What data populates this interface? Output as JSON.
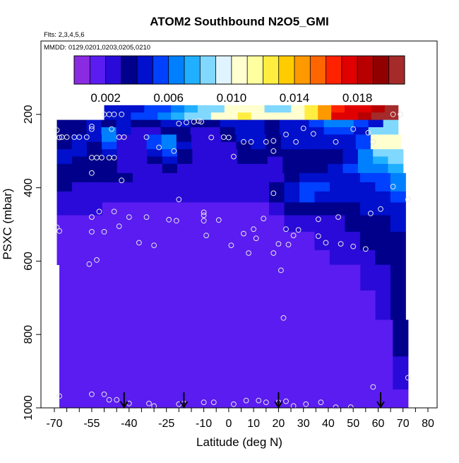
{
  "chart_data": {
    "type": "heatmap",
    "title": "ATOM2 Southbound N2O5_GMI",
    "subtitle_flights": "Flts: 2,3,4,5,6",
    "subtitle_dates": "MMDD: 0129,0201,0203,0205,0210",
    "xlabel": "Latitude (deg N)",
    "ylabel": "PSXC (mbar)",
    "xlim": [
      -70,
      85
    ],
    "ylim": [
      1000,
      0
    ],
    "x_ticks": [
      -70,
      -55,
      -40,
      -25,
      -10,
      0,
      10,
      20,
      30,
      40,
      50,
      60,
      70,
      80
    ],
    "y_ticks": [
      200,
      400,
      600,
      800,
      1000
    ],
    "colorbar": {
      "range": [
        0,
        0.021
      ],
      "tick_values": [
        0.002,
        0.006,
        0.01,
        0.014,
        0.018
      ],
      "tick_labels": [
        "0.002",
        "0.006",
        "0.010",
        "0.014",
        "0.018"
      ],
      "colors": [
        "#8a2be2",
        "#5a1cf0",
        "#2a0ad8",
        "#00008b",
        "#0010cc",
        "#0040ff",
        "#0080ff",
        "#20b0ff",
        "#80d8ff",
        "#e0f4ff",
        "#ffffd0",
        "#ffffa0",
        "#ffee40",
        "#ffcc00",
        "#ff9900",
        "#ff6600",
        "#ff2200",
        "#e00000",
        "#b80000",
        "#900000",
        "#a52a2a"
      ]
    },
    "field_rows": [
      {
        "p": [
          175,
          195
        ],
        "lat": [
          -50,
          68
        ],
        "v": [
          0.004,
          0.004,
          0.004,
          0.005,
          0.005,
          0.006,
          0.007,
          0.008,
          0.009,
          0.01,
          0.011,
          0.01,
          0.009,
          0.009,
          0.01,
          0.012,
          0.014,
          0.016,
          0.017,
          0.018,
          0.019,
          0.02
        ]
      },
      {
        "p": [
          195,
          215
        ],
        "lat": [
          -50,
          68
        ],
        "v": [
          0.004,
          0.004,
          0.005,
          0.005,
          0.006,
          0.007,
          0.008,
          0.009,
          0.01,
          0.011,
          0.012,
          0.011,
          0.01,
          0.01,
          0.011,
          0.013,
          0.015,
          0.017,
          0.018,
          0.019,
          0.02,
          0.02
        ]
      },
      {
        "p": [
          215,
          235
        ],
        "lat": [
          -69,
          68
        ],
        "v": [
          0.003,
          0.003,
          0.004,
          0.003,
          0.004,
          0.003,
          0.003,
          0.004,
          0.004,
          0.003,
          0.003,
          0.004,
          0.004,
          0.004,
          0.003,
          0.004,
          0.004,
          0.005,
          0.006,
          0.006,
          0.005,
          0.004,
          0.008
        ]
      },
      {
        "p": [
          235,
          255
        ],
        "lat": [
          -69,
          68
        ],
        "v": [
          0.003,
          0.003,
          0.004,
          0.006,
          0.004,
          0.002,
          0.002,
          0.003,
          0.003,
          0.002,
          0.002,
          0.003,
          0.004,
          0.004,
          0.003,
          0.004,
          0.004,
          0.004,
          0.005,
          0.005,
          0.004,
          0.008,
          0.009
        ]
      },
      {
        "p": [
          255,
          275
        ],
        "lat": [
          -69,
          69
        ],
        "v": [
          0.003,
          0.004,
          0.004,
          0.006,
          0.002,
          0.002,
          0.005,
          0.006,
          0.003,
          0.002,
          0.002,
          0.003,
          0.004,
          0.004,
          0.003,
          0.004,
          0.004,
          0.004,
          0.004,
          0.004,
          0.005,
          0.01,
          0.011
        ]
      },
      {
        "p": [
          275,
          295
        ],
        "lat": [
          -69,
          69
        ],
        "v": [
          0.003,
          0.004,
          0.003,
          0.005,
          0.002,
          0.002,
          0.005,
          0.006,
          0.004,
          0.002,
          0.002,
          0.002,
          0.003,
          0.004,
          0.003,
          0.004,
          0.004,
          0.004,
          0.004,
          0.004,
          0.005,
          0.01,
          0.01
        ]
      },
      {
        "p": [
          295,
          315
        ],
        "lat": [
          -69,
          70
        ],
        "v": [
          0.004,
          0.004,
          0.003,
          0.004,
          0.002,
          0.002,
          0.004,
          0.005,
          0.003,
          0.002,
          0.002,
          0.002,
          0.003,
          0.003,
          0.003,
          0.003,
          0.003,
          0.003,
          0.003,
          0.004,
          0.006,
          0.008,
          0.009
        ]
      },
      {
        "p": [
          315,
          335
        ],
        "lat": [
          -69,
          70
        ],
        "v": [
          0.004,
          0.003,
          0.003,
          0.003,
          0.002,
          0.002,
          0.003,
          0.004,
          0.003,
          0.002,
          0.002,
          0.002,
          0.003,
          0.003,
          0.002,
          0.003,
          0.003,
          0.003,
          0.003,
          0.004,
          0.006,
          0.007,
          0.008
        ]
      },
      {
        "p": [
          335,
          360
        ],
        "lat": [
          -69,
          70
        ],
        "v": [
          0.003,
          0.003,
          0.003,
          0.003,
          0.002,
          0.002,
          0.002,
          0.003,
          0.002,
          0.002,
          0.002,
          0.002,
          0.002,
          0.002,
          0.002,
          0.003,
          0.003,
          0.003,
          0.004,
          0.005,
          0.006,
          0.006,
          0.007
        ]
      },
      {
        "p": [
          360,
          385
        ],
        "lat": [
          -69,
          71
        ],
        "v": [
          0.003,
          0.003,
          0.003,
          0.003,
          0.003,
          0.002,
          0.002,
          0.002,
          0.002,
          0.002,
          0.002,
          0.002,
          0.002,
          0.002,
          0.002,
          0.003,
          0.004,
          0.004,
          0.004,
          0.004,
          0.005,
          0.005,
          0.006
        ]
      },
      {
        "p": [
          385,
          410
        ],
        "lat": [
          -69,
          71
        ],
        "v": [
          0.003,
          0.002,
          0.002,
          0.002,
          0.002,
          0.002,
          0.002,
          0.002,
          0.002,
          0.002,
          0.002,
          0.002,
          0.002,
          0.002,
          0.003,
          0.004,
          0.005,
          0.005,
          0.004,
          0.004,
          0.004,
          0.005,
          0.006
        ]
      },
      {
        "p": [
          410,
          440
        ],
        "lat": [
          -69,
          71
        ],
        "v": [
          0.002,
          0.002,
          0.002,
          0.002,
          0.002,
          0.002,
          0.002,
          0.002,
          0.002,
          0.002,
          0.002,
          0.002,
          0.002,
          0.002,
          0.003,
          0.004,
          0.005,
          0.004,
          0.004,
          0.004,
          0.004,
          0.004,
          0.005
        ]
      },
      {
        "p": [
          440,
          475
        ],
        "lat": [
          -69,
          71
        ],
        "v": [
          0.002,
          0.002,
          0.002,
          0.001,
          0.001,
          0.001,
          0.001,
          0.001,
          0.001,
          0.001,
          0.001,
          0.001,
          0.001,
          0.001,
          0.002,
          0.003,
          0.003,
          0.003,
          0.003,
          0.003,
          0.004,
          0.004,
          0.004
        ]
      },
      {
        "p": [
          475,
          520
        ],
        "lat": [
          -69,
          71
        ],
        "v": [
          0.001,
          0.001,
          0.001,
          0.001,
          0.001,
          0.001,
          0.001,
          0.001,
          0.001,
          0.001,
          0.001,
          0.001,
          0.001,
          0.001,
          0.001,
          0.002,
          0.002,
          0.002,
          0.002,
          0.003,
          0.003,
          0.003,
          0.004
        ]
      },
      {
        "p": [
          520,
          570
        ],
        "lat": [
          -69,
          71
        ],
        "v": [
          0.001,
          0.001,
          0.001,
          0.001,
          0.001,
          0.001,
          0.001,
          0.001,
          0.001,
          0.001,
          0.001,
          0.001,
          0.001,
          0.001,
          0.001,
          0.001,
          0.001,
          0.002,
          0.002,
          0.002,
          0.003,
          0.003,
          0.003
        ]
      },
      {
        "p": [
          570,
          610
        ],
        "lat": [
          -69,
          71
        ],
        "v": [
          0.001,
          0.001,
          0.001,
          0.001,
          0.001,
          0.001,
          0.001,
          0.001,
          0.001,
          0.001,
          0.001,
          0.001,
          0.001,
          0.001,
          0.001,
          0.001,
          0.001,
          0.001,
          0.002,
          0.002,
          0.002,
          0.003,
          0.003
        ]
      },
      {
        "p": [
          610,
          680
        ],
        "lat": [
          -68,
          71
        ],
        "v": [
          0.001,
          0.001,
          0.001,
          0.001,
          0.001,
          0.001,
          0.001,
          0.001,
          0.001,
          0.001,
          0.001,
          0.001,
          0.001,
          0.001,
          0.001,
          0.001,
          0.001,
          0.001,
          0.001,
          0.001,
          0.002,
          0.002,
          0.003
        ]
      },
      {
        "p": [
          680,
          760
        ],
        "lat": [
          -68,
          71
        ],
        "v": [
          0.001,
          0.001,
          0.001,
          0.001,
          0.001,
          0.001,
          0.001,
          0.001,
          0.001,
          0.001,
          0.001,
          0.001,
          0.001,
          0.001,
          0.001,
          0.001,
          0.001,
          0.001,
          0.001,
          0.001,
          0.001,
          0.002,
          0.003
        ]
      },
      {
        "p": [
          760,
          860
        ],
        "lat": [
          -68,
          72
        ],
        "v": [
          0.001,
          0.001,
          0.001,
          0.001,
          0.001,
          0.001,
          0.001,
          0.001,
          0.001,
          0.001,
          0.001,
          0.001,
          0.001,
          0.001,
          0.001,
          0.001,
          0.001,
          0.001,
          0.001,
          0.001,
          0.001,
          0.001,
          0.003
        ]
      },
      {
        "p": [
          860,
          950
        ],
        "lat": [
          -68,
          72
        ],
        "v": [
          0.001,
          0.001,
          0.001,
          0.001,
          0.001,
          0.001,
          0.001,
          0.001,
          0.001,
          0.001,
          0.001,
          0.001,
          0.001,
          0.001,
          0.001,
          0.001,
          0.001,
          0.001,
          0.001,
          0.001,
          0.001,
          0.001,
          0.002
        ]
      },
      {
        "p": [
          950,
          1000
        ],
        "lat": [
          -68,
          50
        ],
        "v": [
          0.001,
          0.001,
          0.001,
          0.001,
          0.001,
          0.001,
          0.001,
          0.001,
          0.001,
          0.001,
          0.001,
          0.001,
          0.001,
          0.001,
          0.001,
          0.001,
          0.001,
          0.001,
          0.001,
          0.001,
          0.001,
          0.001,
          0.001
        ]
      },
      {
        "p": [
          950,
          1000
        ],
        "lat": [
          50,
          72
        ],
        "v": [
          0.001,
          0.001
        ]
      }
    ],
    "observations": [
      [
        -50,
        200
      ],
      [
        -48,
        200
      ],
      [
        -46,
        200
      ],
      [
        -43,
        200
      ],
      [
        66,
        200
      ],
      [
        69,
        200
      ],
      [
        -69,
        243
      ],
      [
        -55,
        233
      ],
      [
        -55,
        240
      ],
      [
        -47,
        240
      ],
      [
        -20,
        225
      ],
      [
        -17,
        222
      ],
      [
        -14,
        220
      ],
      [
        -12,
        218
      ],
      [
        -11,
        220
      ],
      [
        30,
        238
      ],
      [
        50,
        240
      ],
      [
        56,
        250
      ],
      [
        -68,
        263
      ],
      [
        -67,
        262
      ],
      [
        -65,
        262
      ],
      [
        -62,
        262
      ],
      [
        -60,
        262
      ],
      [
        -57,
        262
      ],
      [
        -44,
        262
      ],
      [
        -42,
        262
      ],
      [
        -33,
        262
      ],
      [
        -7,
        263
      ],
      [
        -2,
        262
      ],
      [
        0,
        263
      ],
      [
        6,
        275
      ],
      [
        9,
        275
      ],
      [
        15,
        275
      ],
      [
        18,
        272
      ],
      [
        27,
        275
      ],
      [
        23,
        255
      ],
      [
        34,
        253
      ],
      [
        43,
        275
      ],
      [
        58,
        275
      ],
      [
        -28,
        290
      ],
      [
        -22,
        300
      ],
      [
        2,
        315
      ],
      [
        18,
        300
      ],
      [
        -55,
        318
      ],
      [
        -53,
        318
      ],
      [
        -51,
        318
      ],
      [
        -48,
        318
      ],
      [
        -46,
        318
      ],
      [
        -55,
        360
      ],
      [
        -43,
        380
      ],
      [
        66,
        397
      ],
      [
        18,
        415
      ],
      [
        -20,
        432
      ],
      [
        -10,
        467
      ],
      [
        72,
        432
      ],
      [
        -69,
        508
      ],
      [
        -68,
        518
      ],
      [
        -55,
        480
      ],
      [
        -52,
        465
      ],
      [
        -46,
        465
      ],
      [
        -40,
        480
      ],
      [
        -33,
        480
      ],
      [
        -24,
        487
      ],
      [
        -21,
        490
      ],
      [
        -10,
        475
      ],
      [
        -10,
        490
      ],
      [
        -4,
        488
      ],
      [
        14,
        484
      ],
      [
        36,
        486
      ],
      [
        44,
        480
      ],
      [
        57,
        470
      ],
      [
        61,
        458
      ],
      [
        -55,
        520
      ],
      [
        -50,
        520
      ],
      [
        -44,
        505
      ],
      [
        -36,
        550
      ],
      [
        -30,
        557
      ],
      [
        -9,
        530
      ],
      [
        1,
        557
      ],
      [
        6,
        525
      ],
      [
        8,
        578
      ],
      [
        10,
        513
      ],
      [
        11,
        538
      ],
      [
        18,
        578
      ],
      [
        20,
        553
      ],
      [
        23,
        513
      ],
      [
        24,
        555
      ],
      [
        26,
        530
      ],
      [
        28,
        515
      ],
      [
        36,
        532
      ],
      [
        39,
        550
      ],
      [
        45,
        553
      ],
      [
        50,
        560
      ],
      [
        55,
        567
      ],
      [
        -56,
        608
      ],
      [
        -53,
        597
      ],
      [
        21,
        625
      ],
      [
        22,
        755
      ],
      [
        -68,
        968
      ],
      [
        -55,
        963
      ],
      [
        -50,
        963
      ],
      [
        -48,
        978
      ],
      [
        -45,
        978
      ],
      [
        -40,
        988
      ],
      [
        -32,
        988
      ],
      [
        -30,
        995
      ],
      [
        -20,
        990
      ],
      [
        -18,
        988
      ],
      [
        -10,
        985
      ],
      [
        -6,
        985
      ],
      [
        2,
        990
      ],
      [
        7,
        980
      ],
      [
        12,
        980
      ],
      [
        15,
        985
      ],
      [
        20,
        985
      ],
      [
        23,
        982
      ],
      [
        26,
        995
      ],
      [
        31,
        990
      ],
      [
        37,
        985
      ],
      [
        43,
        998
      ],
      [
        49,
        998
      ],
      [
        58,
        943
      ],
      [
        72,
        918
      ]
    ],
    "arrows_lat": [
      -42,
      -18,
      20,
      61
    ]
  }
}
